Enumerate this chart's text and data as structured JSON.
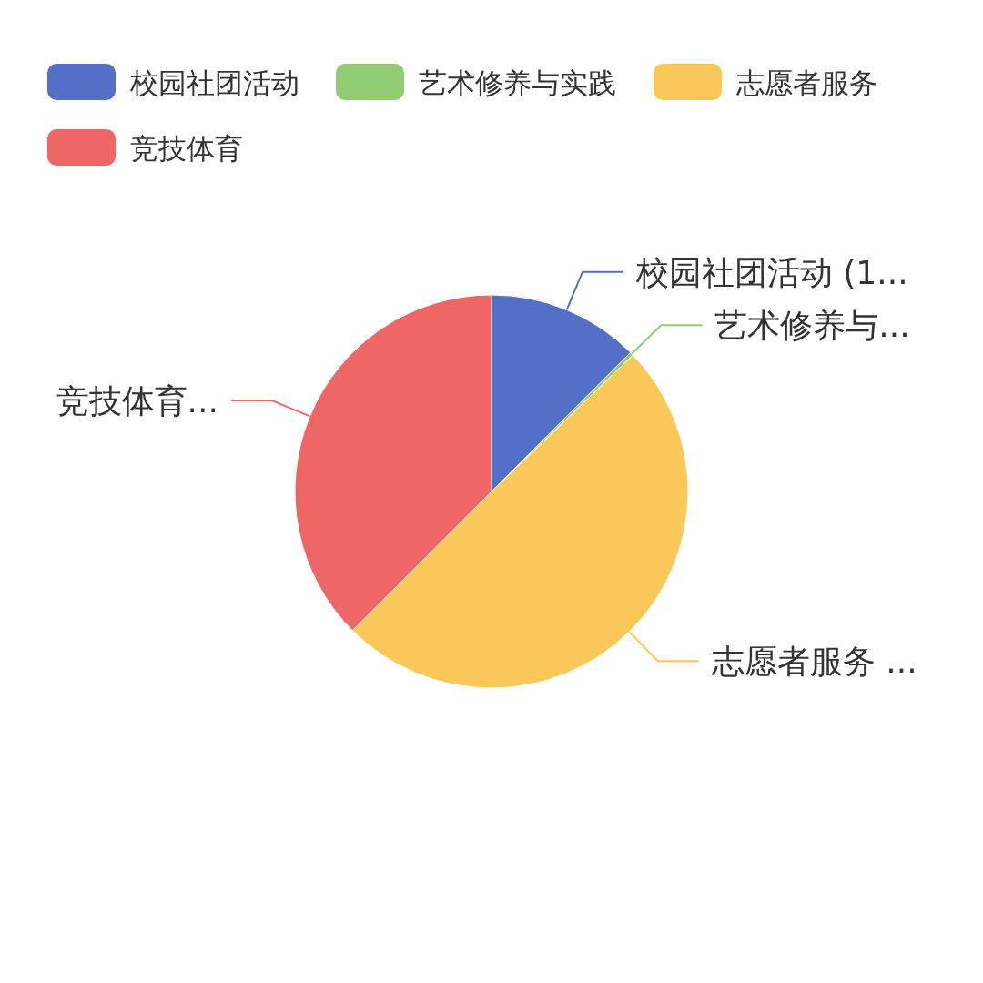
{
  "chart_data": {
    "type": "pie",
    "categories": [
      "校园社团活动",
      "艺术修养与实践",
      "志愿者服务",
      "竞技体育"
    ],
    "values": [
      12.5,
      0.3,
      49.7,
      37.5
    ],
    "colors": [
      "#5470c6",
      "#91cc75",
      "#fac858",
      "#ee6666"
    ],
    "value_labels": [
      "校园社团活动 (1...",
      "艺术修养与...",
      "志愿者服务 ...",
      "竞技体育..."
    ],
    "legend": "top"
  }
}
